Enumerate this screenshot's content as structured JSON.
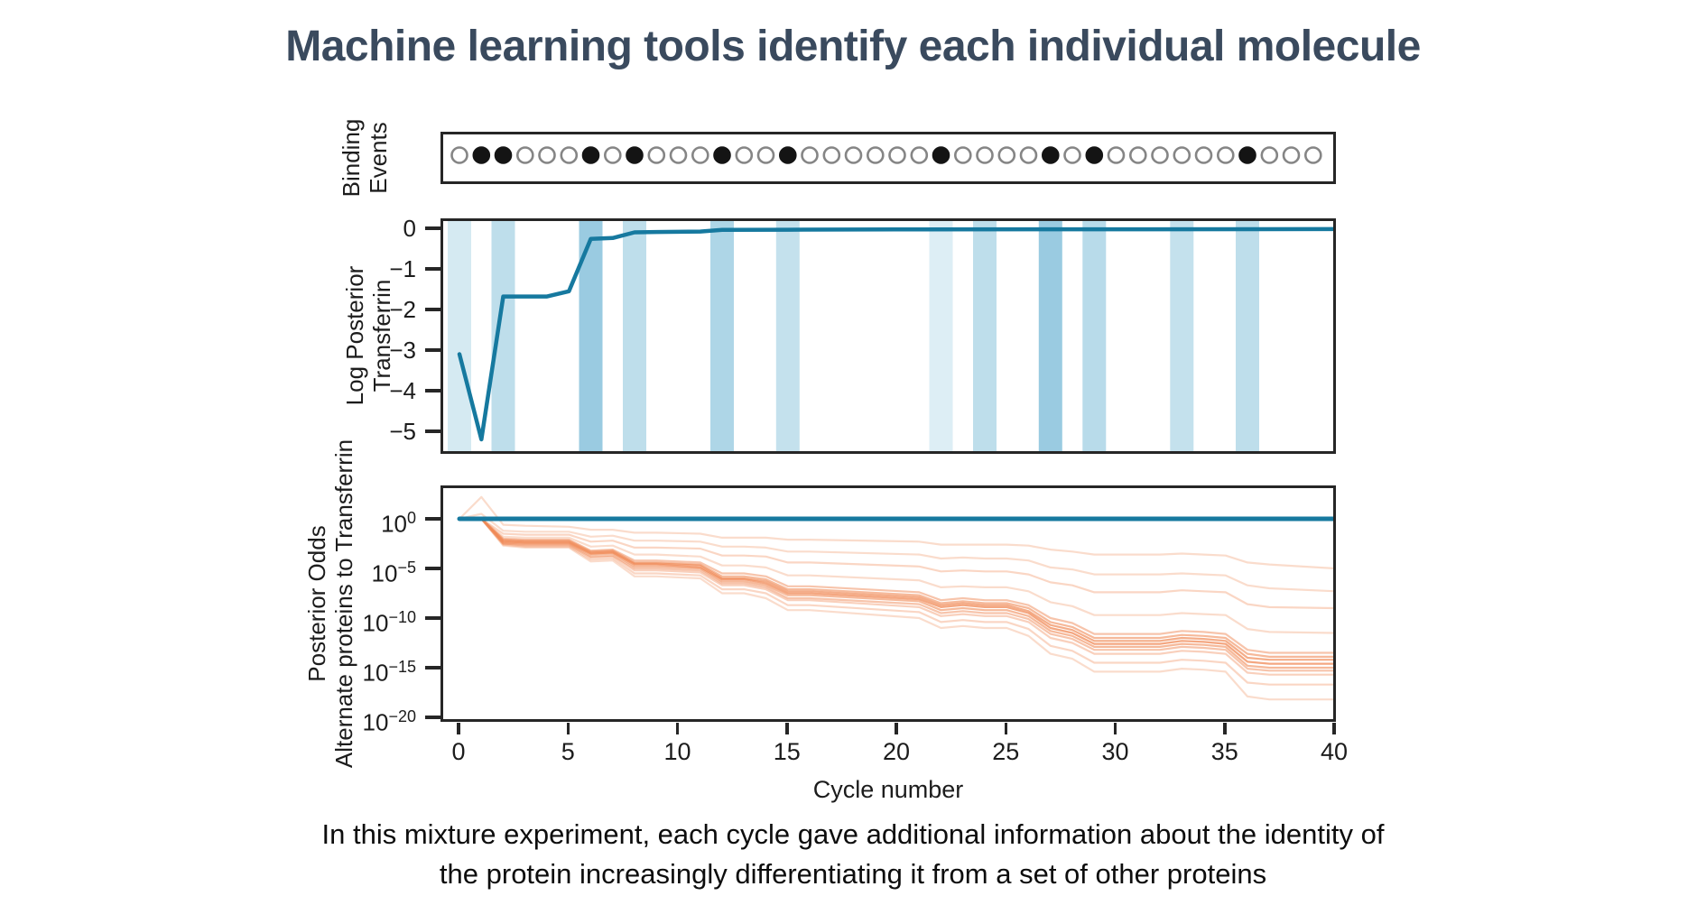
{
  "title": "Machine learning tools identify each individual molecule",
  "caption": {
    "line1": "In this mixture experiment, each cycle gave additional information about the identity of",
    "line2": "the protein increasingly differentiating it from a set of other proteins"
  },
  "colors": {
    "title": "#3a4a5e",
    "teal": "#16799f",
    "orange": "#f08a57",
    "band": "#7dbdd8",
    "axis": "#262626",
    "open_dot": "#858585",
    "filled_dot": "#141414"
  },
  "chart_data": [
    {
      "type": "scatter",
      "title_lines": [
        "Binding",
        "Events"
      ],
      "note": "one dot per cycle, filled = binding event",
      "events": [
        "open",
        "filled",
        "filled",
        "open",
        "open",
        "open",
        "filled",
        "open",
        "filled",
        "open",
        "open",
        "open",
        "filled",
        "open",
        "open",
        "filled",
        "open",
        "open",
        "open",
        "open",
        "open",
        "open",
        "filled",
        "open",
        "open",
        "open",
        "open",
        "filled",
        "open",
        "filled",
        "open",
        "open",
        "open",
        "open",
        "open",
        "open",
        "filled",
        "open",
        "open",
        "open"
      ]
    },
    {
      "type": "line",
      "ylabel_lines": [
        "Log Posterior",
        "Transferrin"
      ],
      "yticks": [
        0,
        -1,
        -2,
        -3,
        -4,
        -5
      ],
      "ylim": [
        0.18,
        -5.55
      ],
      "xlim": [
        -0.85,
        40
      ],
      "series": [
        {
          "name": "Transferrin log posterior",
          "x": [
            0,
            1,
            2,
            4,
            5,
            6,
            7,
            8,
            9,
            11,
            12,
            15,
            20,
            40
          ],
          "y": [
            -3.1,
            -5.2,
            -1.68,
            -1.68,
            -1.55,
            -0.26,
            -0.24,
            -0.1,
            -0.09,
            -0.08,
            -0.04,
            -0.035,
            -0.03,
            -0.02
          ]
        }
      ],
      "event_bands": {
        "cycles": [
          0,
          2,
          6,
          8,
          12,
          15,
          22,
          24,
          27,
          29,
          33,
          36
        ],
        "opacities": [
          0.32,
          0.5,
          0.78,
          0.5,
          0.62,
          0.45,
          0.26,
          0.5,
          0.78,
          0.55,
          0.45,
          0.5
        ]
      }
    },
    {
      "type": "line",
      "yscale": "log",
      "ylabel_lines": [
        "Posterior Odds",
        "Alternate proteins to Transferrin"
      ],
      "xlabel": "Cycle number",
      "xticks": [
        0,
        5,
        10,
        15,
        20,
        25,
        30,
        35,
        40
      ],
      "ytick_exponents": [
        0,
        -5,
        -10,
        -15,
        -20
      ],
      "ylim_exponents": [
        3.3,
        -20.4
      ],
      "xlim": [
        -0.85,
        40
      ],
      "transferrin_line": {
        "name": "Transferrin",
        "y_exponent": 0
      },
      "alternate_x": [
        0,
        1,
        2,
        3,
        5,
        6,
        7,
        8,
        9,
        11,
        12,
        13,
        14,
        15,
        16,
        21,
        22,
        23,
        24,
        25,
        26,
        27,
        28,
        29,
        30,
        32,
        33,
        34,
        35,
        36,
        37,
        40
      ],
      "alternate_lines": [
        {
          "opacity": 0.3,
          "y": [
            0,
            2.2,
            -0.6,
            -0.7,
            -0.8,
            -1.1,
            -1.1,
            -1.4,
            -1.4,
            -1.5,
            -1.9,
            -1.9,
            -1.9,
            -2.1,
            -2.1,
            -2.3,
            -2.6,
            -2.6,
            -2.6,
            -2.6,
            -2.7,
            -3.1,
            -3.3,
            -3.6,
            -3.6,
            -3.6,
            -3.5,
            -3.6,
            -3.7,
            -4.4,
            -4.6,
            -5.0
          ]
        },
        {
          "opacity": 0.3,
          "y": [
            0,
            0.5,
            -1.2,
            -1.3,
            -1.3,
            -1.8,
            -1.7,
            -2.2,
            -2.2,
            -2.3,
            -2.8,
            -2.8,
            -2.9,
            -3.3,
            -3.3,
            -3.6,
            -4.0,
            -3.9,
            -4.0,
            -4.0,
            -4.2,
            -4.9,
            -5.1,
            -5.6,
            -5.6,
            -5.6,
            -5.5,
            -5.6,
            -5.7,
            -6.7,
            -7.0,
            -7.3
          ]
        },
        {
          "opacity": 0.35,
          "y": [
            0,
            0,
            -1.5,
            -1.6,
            -1.6,
            -2.3,
            -2.2,
            -2.9,
            -2.9,
            -3.0,
            -3.7,
            -3.7,
            -3.8,
            -4.4,
            -4.4,
            -4.8,
            -5.3,
            -5.2,
            -5.3,
            -5.3,
            -5.6,
            -6.4,
            -6.7,
            -7.4,
            -7.4,
            -7.4,
            -7.2,
            -7.3,
            -7.4,
            -8.6,
            -8.9,
            -9.0
          ]
        },
        {
          "opacity": 0.3,
          "y": [
            0,
            0,
            -1.8,
            -1.9,
            -1.9,
            -2.8,
            -2.7,
            -3.6,
            -3.6,
            -3.8,
            -4.7,
            -4.7,
            -4.9,
            -5.7,
            -5.7,
            -6.2,
            -6.9,
            -6.8,
            -6.9,
            -6.9,
            -7.3,
            -8.4,
            -8.8,
            -9.7,
            -9.7,
            -9.7,
            -9.5,
            -9.6,
            -9.7,
            -11.1,
            -11.4,
            -11.5
          ]
        },
        {
          "opacity": 0.5,
          "y": [
            0,
            0,
            -2.0,
            -2.1,
            -2.1,
            -3.2,
            -3.1,
            -4.2,
            -4.2,
            -4.4,
            -5.5,
            -5.5,
            -5.8,
            -6.8,
            -6.8,
            -7.4,
            -8.2,
            -8.0,
            -8.2,
            -8.2,
            -8.7,
            -10.0,
            -10.5,
            -11.6,
            -11.6,
            -11.6,
            -11.3,
            -11.4,
            -11.6,
            -13.2,
            -13.5,
            -13.5
          ]
        },
        {
          "opacity": 0.6,
          "y": [
            0,
            0,
            -2.1,
            -2.2,
            -2.2,
            -3.3,
            -3.2,
            -4.4,
            -4.4,
            -4.6,
            -5.8,
            -5.8,
            -6.1,
            -7.1,
            -7.1,
            -7.7,
            -8.5,
            -8.3,
            -8.5,
            -8.5,
            -9.0,
            -10.4,
            -10.9,
            -12.0,
            -12.0,
            -12.0,
            -11.7,
            -11.8,
            -12.0,
            -13.6,
            -13.9,
            -13.9
          ]
        },
        {
          "opacity": 0.7,
          "y": [
            0,
            0,
            -2.2,
            -2.3,
            -2.3,
            -3.4,
            -3.3,
            -4.5,
            -4.5,
            -4.7,
            -6.0,
            -6.0,
            -6.3,
            -7.3,
            -7.3,
            -7.9,
            -8.7,
            -8.5,
            -8.7,
            -8.7,
            -9.3,
            -10.7,
            -11.2,
            -12.3,
            -12.3,
            -12.3,
            -12.0,
            -12.1,
            -12.3,
            -14.0,
            -14.2,
            -14.2
          ]
        },
        {
          "opacity": 0.75,
          "y": [
            0,
            0,
            -2.3,
            -2.4,
            -2.4,
            -3.5,
            -3.4,
            -4.6,
            -4.6,
            -4.9,
            -6.1,
            -6.1,
            -6.5,
            -7.5,
            -7.5,
            -8.1,
            -8.9,
            -8.7,
            -8.9,
            -8.9,
            -9.5,
            -11.0,
            -11.5,
            -12.6,
            -12.6,
            -12.6,
            -12.3,
            -12.4,
            -12.6,
            -14.4,
            -14.6,
            -14.6
          ]
        },
        {
          "opacity": 0.6,
          "y": [
            0,
            0,
            -2.4,
            -2.5,
            -2.5,
            -3.6,
            -3.5,
            -4.8,
            -4.8,
            -5.0,
            -6.3,
            -6.3,
            -6.7,
            -7.7,
            -7.7,
            -8.3,
            -9.2,
            -9.0,
            -9.2,
            -9.2,
            -9.8,
            -11.3,
            -11.8,
            -12.9,
            -12.9,
            -12.9,
            -12.6,
            -12.7,
            -12.9,
            -14.8,
            -15.0,
            -15.0
          ]
        },
        {
          "opacity": 0.5,
          "y": [
            0,
            0,
            -2.5,
            -2.6,
            -2.6,
            -3.8,
            -3.7,
            -5.0,
            -5.0,
            -5.2,
            -6.5,
            -6.5,
            -6.9,
            -8.0,
            -8.0,
            -8.6,
            -9.5,
            -9.3,
            -9.5,
            -9.5,
            -10.1,
            -11.6,
            -12.1,
            -13.2,
            -13.2,
            -13.2,
            -12.9,
            -13.0,
            -13.2,
            -15.1,
            -15.3,
            -15.3
          ]
        },
        {
          "opacity": 0.4,
          "y": [
            0,
            0,
            -2.5,
            -2.7,
            -2.7,
            -3.9,
            -3.8,
            -5.2,
            -5.2,
            -5.4,
            -6.7,
            -6.7,
            -7.1,
            -8.2,
            -8.2,
            -8.9,
            -9.8,
            -9.6,
            -9.8,
            -9.8,
            -10.4,
            -12.0,
            -12.5,
            -13.6,
            -13.6,
            -13.6,
            -13.3,
            -13.4,
            -13.6,
            -15.5,
            -15.7,
            -15.7
          ]
        },
        {
          "opacity": 0.35,
          "y": [
            0,
            0,
            -2.6,
            -2.8,
            -2.8,
            -4.1,
            -4.0,
            -5.5,
            -5.5,
            -5.7,
            -7.1,
            -7.1,
            -7.5,
            -8.7,
            -8.7,
            -9.4,
            -10.4,
            -10.2,
            -10.4,
            -10.4,
            -11.1,
            -12.8,
            -13.3,
            -14.5,
            -14.5,
            -14.5,
            -14.2,
            -14.3,
            -14.5,
            -16.5,
            -16.7,
            -16.7
          ]
        },
        {
          "opacity": 0.3,
          "y": [
            0,
            0,
            -2.7,
            -2.9,
            -2.9,
            -4.3,
            -4.2,
            -5.8,
            -5.8,
            -6.0,
            -7.5,
            -7.5,
            -8.0,
            -9.2,
            -9.2,
            -10.0,
            -11.0,
            -10.8,
            -11.0,
            -11.0,
            -11.8,
            -13.6,
            -14.1,
            -15.4,
            -15.4,
            -15.4,
            -15.1,
            -15.2,
            -15.4,
            -17.9,
            -18.2,
            -18.2
          ]
        }
      ]
    }
  ]
}
